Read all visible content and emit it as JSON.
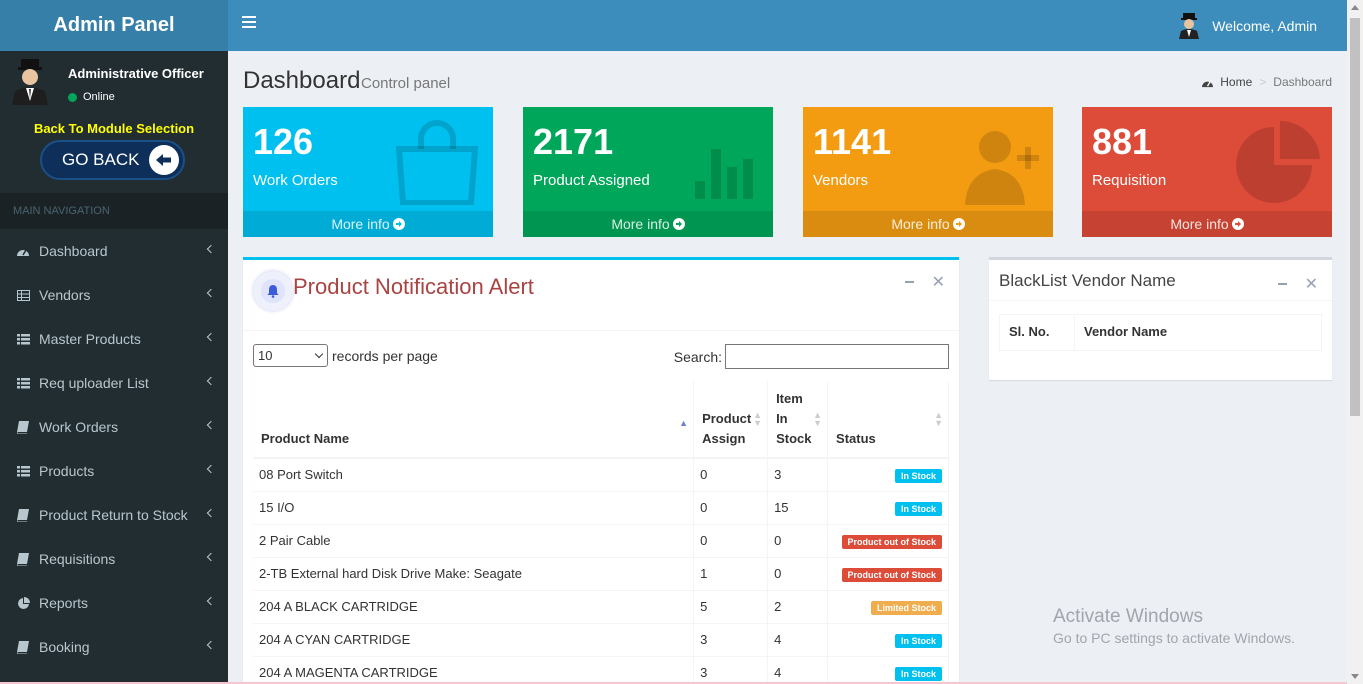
{
  "header": {
    "logo": "Admin Panel",
    "welcome": "Welcome, Admin"
  },
  "sidebar": {
    "user_name": "Administrative Officer",
    "status": "Online",
    "back_text": "Back To Module Selection",
    "go_back": "GO BACK",
    "nav_header": "MAIN NAVIGATION",
    "items": [
      {
        "label": "Dashboard",
        "icon": "dashboard-icon"
      },
      {
        "label": "Vendors",
        "icon": "table-icon"
      },
      {
        "label": "Master Products",
        "icon": "list-icon"
      },
      {
        "label": "Req uploader List",
        "icon": "list-icon"
      },
      {
        "label": "Work Orders",
        "icon": "book-icon"
      },
      {
        "label": "Products",
        "icon": "list-icon"
      },
      {
        "label": "Product Return to Stock",
        "icon": "book-icon"
      },
      {
        "label": "Requisitions",
        "icon": "book-icon"
      },
      {
        "label": "Reports",
        "icon": "pie-chart-icon"
      },
      {
        "label": "Booking",
        "icon": "book-icon"
      }
    ]
  },
  "content": {
    "title": "Dashboard",
    "subtitle": "Control panel",
    "breadcrumb_home": "Home",
    "breadcrumb_current": "Dashboard"
  },
  "stat_boxes": [
    {
      "value": "126",
      "label": "Work Orders",
      "more": "More info",
      "color": "#00c0ef",
      "icon": "shopping-bag-icon"
    },
    {
      "value": "2171",
      "label": "Product Assigned",
      "more": "More info",
      "color": "#00a65a",
      "icon": "bar-chart-icon"
    },
    {
      "value": "1141",
      "label": "Vendors",
      "more": "More info",
      "color": "#f39c12",
      "icon": "user-plus-icon"
    },
    {
      "value": "881",
      "label": "Requisition",
      "more": "More info",
      "color": "#dd4b39",
      "icon": "pie-chart-icon"
    }
  ],
  "notification_panel": {
    "title": "Product Notification Alert",
    "page_size": "10",
    "records_label": "records per page",
    "search_label": "Search:",
    "columns": [
      "Product Name",
      "Product Assign",
      "Item In Stock",
      "Status"
    ],
    "rows": [
      {
        "name": "08 Port Switch",
        "assign": "0",
        "stock": "3",
        "status": "In Stock",
        "status_color": "#00c0ef"
      },
      {
        "name": "15 I/O",
        "assign": "0",
        "stock": "15",
        "status": "In Stock",
        "status_color": "#00c0ef"
      },
      {
        "name": "2 Pair Cable",
        "assign": "0",
        "stock": "0",
        "status": "Product out of Stock",
        "status_color": "#dd4b39"
      },
      {
        "name": "2-TB External hard Disk Drive Make: Seagate",
        "assign": "1",
        "stock": "0",
        "status": "Product out of Stock",
        "status_color": "#dd4b39"
      },
      {
        "name": "204 A BLACK CARTRIDGE",
        "assign": "5",
        "stock": "2",
        "status": "Limited Stock",
        "status_color": "#f0ad4e"
      },
      {
        "name": "204 A CYAN CARTRIDGE",
        "assign": "3",
        "stock": "4",
        "status": "In Stock",
        "status_color": "#00c0ef"
      },
      {
        "name": "204 A MAGENTA CARTRIDGE",
        "assign": "3",
        "stock": "4",
        "status": "In Stock",
        "status_color": "#00c0ef"
      }
    ]
  },
  "blacklist_panel": {
    "title": "BlackList Vendor Name",
    "columns": [
      "Sl. No.",
      "Vendor Name"
    ]
  },
  "watermark": {
    "line1": "Activate Windows",
    "line2": "Go to PC settings to activate Windows."
  }
}
